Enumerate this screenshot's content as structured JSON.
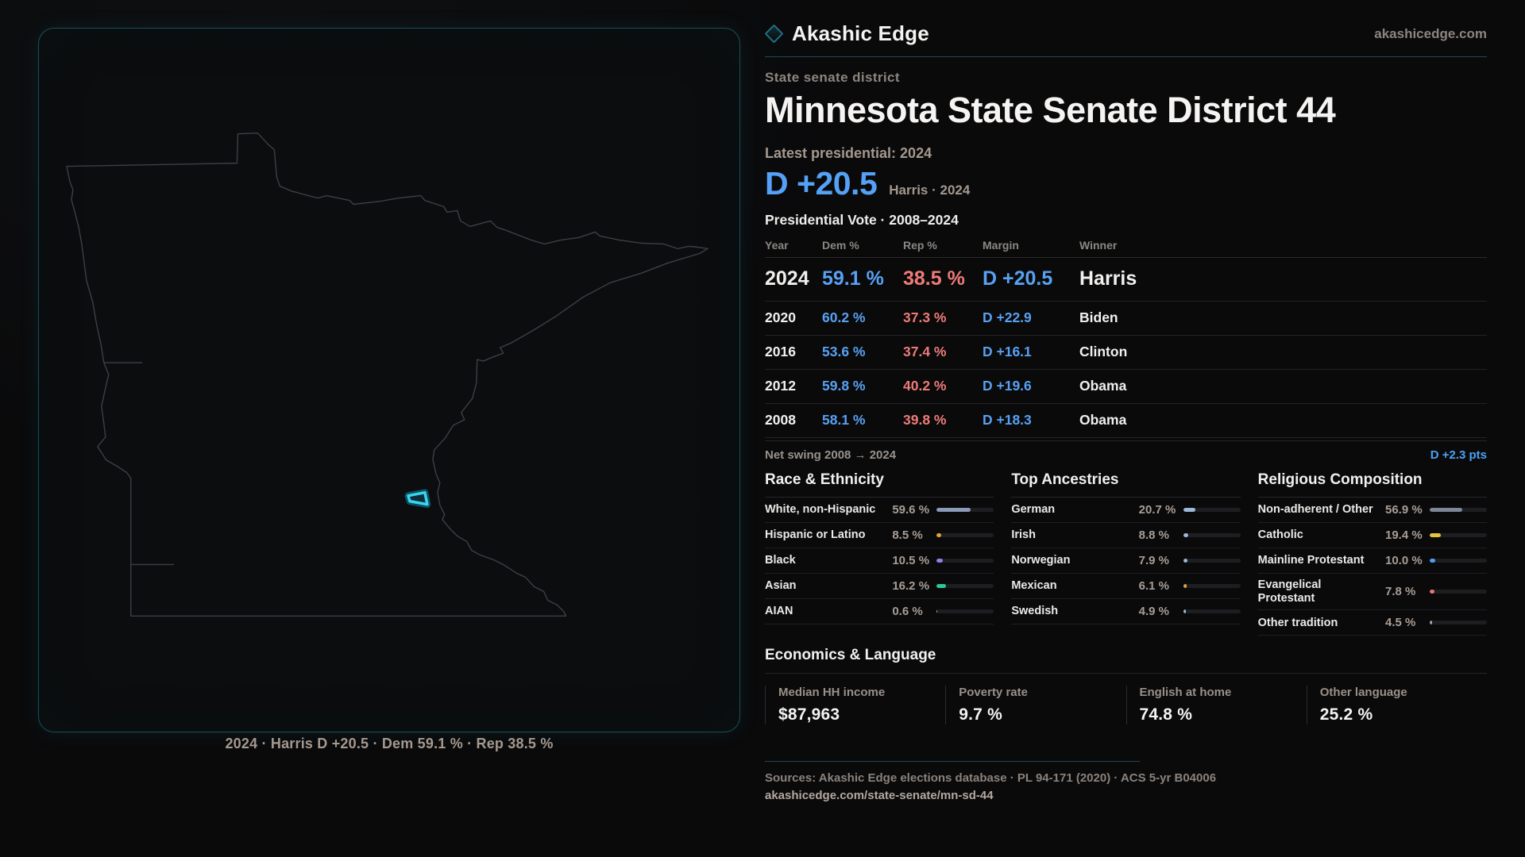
{
  "brand": {
    "name": "Akashic Edge",
    "domain": "akashicedge.com"
  },
  "page": {
    "kicker": "State senate district",
    "title": "Minnesota State Senate District 44"
  },
  "latest": {
    "label": "Latest presidential: 2024",
    "margin": "D +20.5",
    "sub": "Harris · 2024"
  },
  "table": {
    "title": "Presidential Vote · 2008–2024",
    "columns": [
      "Year",
      "Dem %",
      "Rep %",
      "Margin",
      "Winner"
    ],
    "rows": [
      {
        "year": "2024",
        "dem": "59.1 %",
        "rep": "38.5 %",
        "margin": "D +20.5",
        "winner": "Harris"
      },
      {
        "year": "2020",
        "dem": "60.2 %",
        "rep": "37.3 %",
        "margin": "D +22.9",
        "winner": "Biden"
      },
      {
        "year": "2016",
        "dem": "53.6 %",
        "rep": "37.4 %",
        "margin": "D +16.1",
        "winner": "Clinton"
      },
      {
        "year": "2012",
        "dem": "59.8 %",
        "rep": "40.2 %",
        "margin": "D +19.6",
        "winner": "Obama"
      },
      {
        "year": "2008",
        "dem": "58.1 %",
        "rep": "39.8 %",
        "margin": "D +18.3",
        "winner": "Obama"
      }
    ]
  },
  "net_swing": {
    "label": "Net swing 2008 → 2024",
    "value": "D +2.3 pts"
  },
  "demographics": {
    "sections": [
      {
        "key": "race",
        "title": "Race & Ethnicity",
        "rows": [
          {
            "label": "White, non-Hispanic",
            "value": "59.6 %",
            "pct": 59.6,
            "color": "#8a9ab8"
          },
          {
            "label": "Hispanic or Latino",
            "value": "8.5 %",
            "pct": 8.5,
            "color": "#e2a43c"
          },
          {
            "label": "Black",
            "value": "10.5 %",
            "pct": 10.5,
            "color": "#8d80e8"
          },
          {
            "label": "Asian",
            "value": "16.2 %",
            "pct": 16.2,
            "color": "#2fc79a"
          },
          {
            "label": "AIAN",
            "value": "0.6 %",
            "pct": 0.6,
            "color": "#9aa4b2"
          }
        ]
      },
      {
        "key": "ancestries",
        "title": "Top Ancestries",
        "rows": [
          {
            "label": "German",
            "value": "20.7 %",
            "pct": 20.7,
            "color": "#9db8d8"
          },
          {
            "label": "Irish",
            "value": "8.8 %",
            "pct": 8.8,
            "color": "#9db8d8"
          },
          {
            "label": "Norwegian",
            "value": "7.9 %",
            "pct": 7.9,
            "color": "#9db8d8"
          },
          {
            "label": "Mexican",
            "value": "6.1 %",
            "pct": 6.1,
            "color": "#e2a43c"
          },
          {
            "label": "Swedish",
            "value": "4.9 %",
            "pct": 4.9,
            "color": "#9db8d8"
          }
        ]
      },
      {
        "key": "religion",
        "title": "Religious Composition",
        "rows": [
          {
            "label": "Non-adherent / Other",
            "value": "56.9 %",
            "pct": 56.9,
            "color": "#7e8798"
          },
          {
            "label": "Catholic",
            "value": "19.4 %",
            "pct": 19.4,
            "color": "#e5c33e"
          },
          {
            "label": "Mainline Protestant",
            "value": "10.0 %",
            "pct": 10.0,
            "color": "#4f9df5"
          },
          {
            "label": "Evangelical Protestant",
            "value": "7.8 %",
            "pct": 7.8,
            "color": "#ea7575"
          },
          {
            "label": "Other tradition",
            "value": "4.5 %",
            "pct": 4.5,
            "color": "#9aa4b2"
          }
        ]
      }
    ]
  },
  "economics": {
    "title": "Economics & Language",
    "stats": [
      {
        "label": "Median HH income",
        "value": "$87,963"
      },
      {
        "label": "Poverty rate",
        "value": "9.7 %"
      },
      {
        "label": "English at home",
        "value": "74.8 %"
      },
      {
        "label": "Other language",
        "value": "25.2 %"
      }
    ]
  },
  "map": {
    "caption": "2024 · Harris D +20.5 · Dem 59.1 % · Rep 38.5 %"
  },
  "footer": {
    "sources": "Sources: Akashic Edge elections database · PL 94-171 (2020) · ACS 5-yr B04006",
    "permalink": "akashicedge.com/state-senate/mn-sd-44"
  },
  "colors": {
    "dem_blue": "#58a1f3",
    "rep_red": "#ef7b78",
    "accent_cyan": "#38d4f1",
    "teal_rule": "#1b4b57",
    "panel_border": "#15505e",
    "muted_text": "#a4988e",
    "background": "#0a0a0b"
  }
}
